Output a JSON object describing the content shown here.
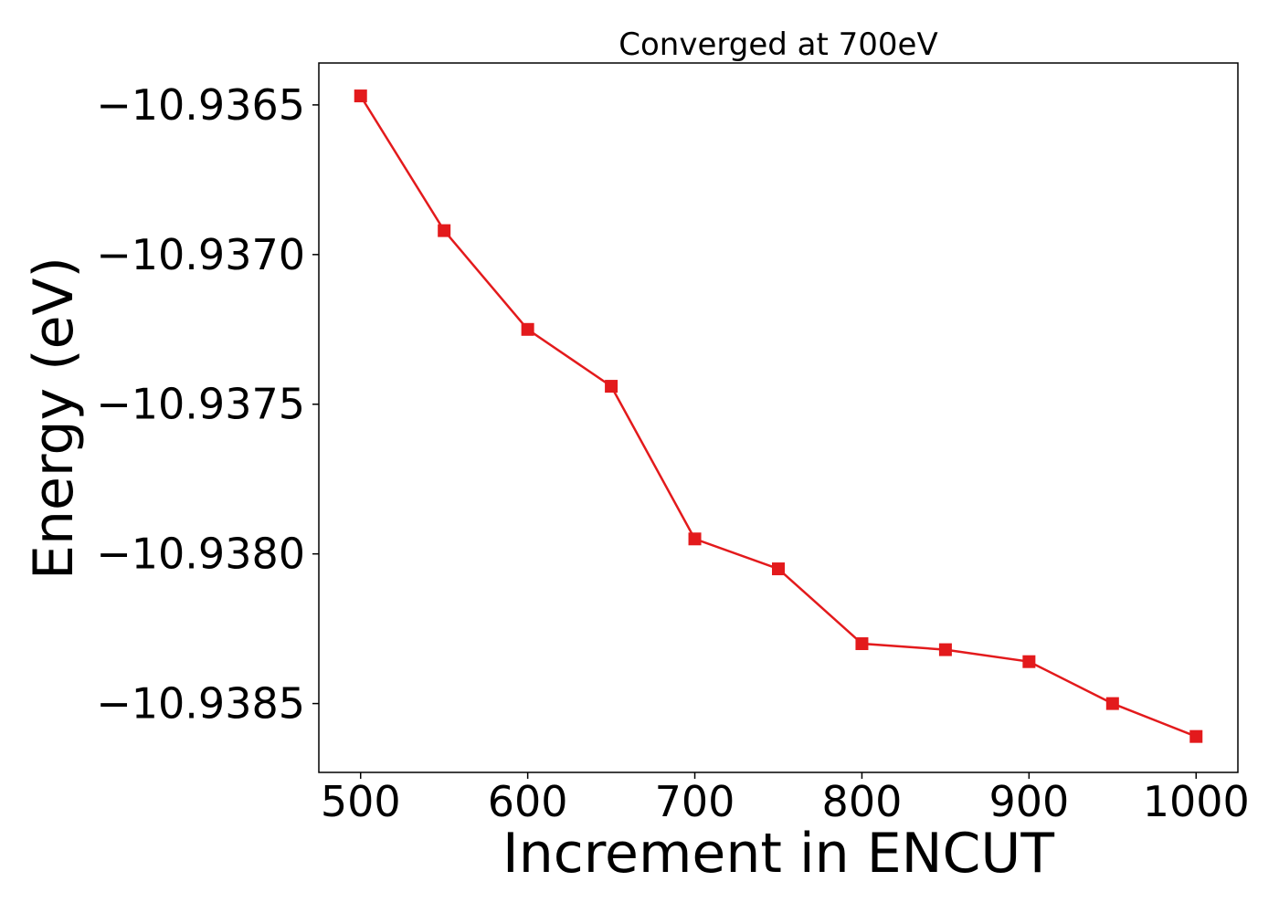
{
  "chart_data": {
    "type": "line",
    "title": "Converged at 700eV",
    "xlabel": "Increment in ENCUT",
    "ylabel": "Energy (eV)",
    "xlim": [
      475,
      1025
    ],
    "ylim": [
      -10.93873,
      -10.93636
    ],
    "xticks": [
      500,
      600,
      700,
      800,
      900,
      1000
    ],
    "xtick_labels": [
      "500",
      "600",
      "700",
      "800",
      "900",
      "1000"
    ],
    "yticks": [
      -10.9365,
      -10.937,
      -10.9375,
      -10.938,
      -10.9385
    ],
    "ytick_labels": [
      "−10.9365",
      "−10.9370",
      "−10.9375",
      "−10.9380",
      "−10.9385"
    ],
    "grid": false,
    "series": [
      {
        "color": "#e31a1c",
        "marker": "square",
        "x": [
          500,
          550,
          600,
          650,
          700,
          750,
          800,
          850,
          900,
          950,
          1000
        ],
        "y": [
          -10.93647,
          -10.93692,
          -10.93725,
          -10.93744,
          -10.93795,
          -10.93805,
          -10.9383,
          -10.93832,
          -10.93836,
          -10.9385,
          -10.93861
        ]
      }
    ]
  }
}
